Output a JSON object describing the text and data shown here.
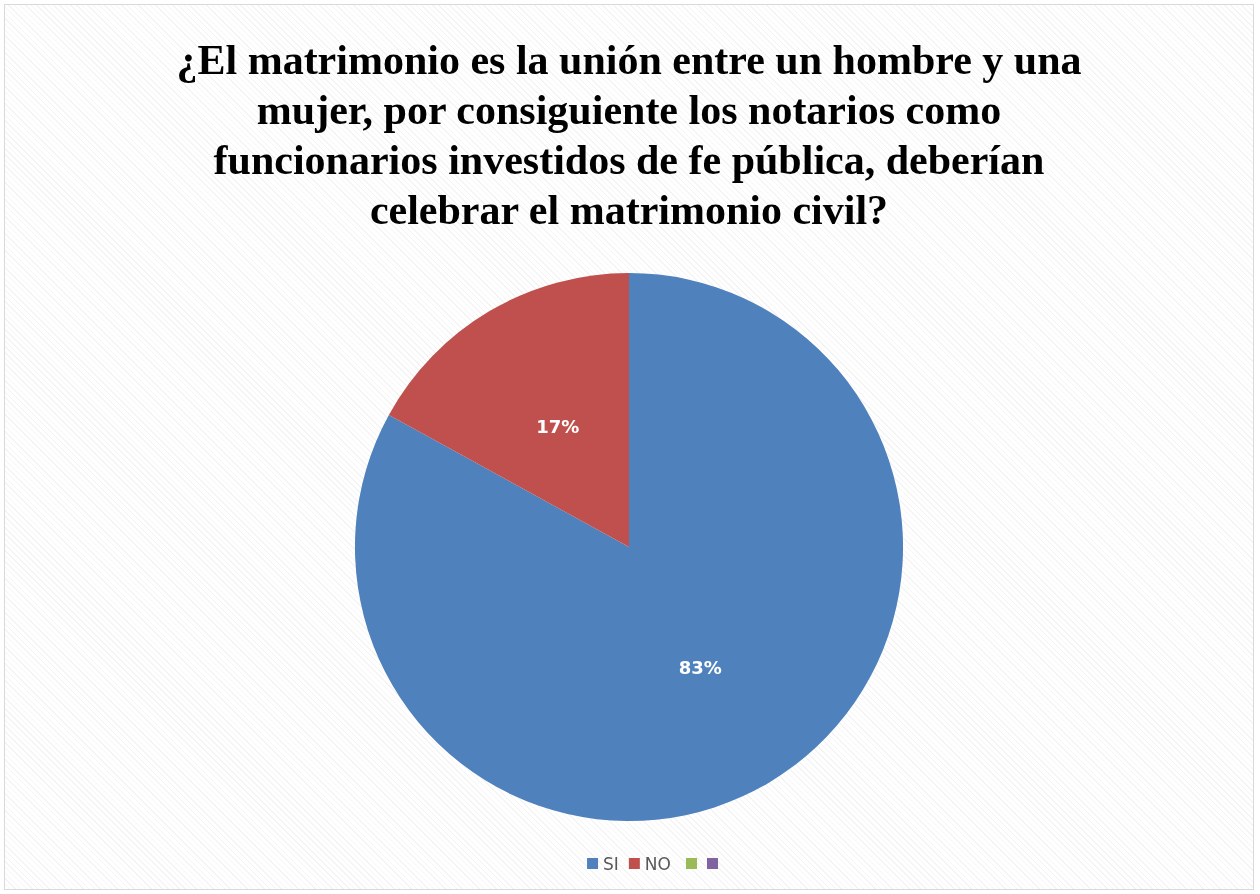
{
  "chart_data": {
    "type": "pie",
    "title": "¿El matrimonio es la unión entre un hombre y una mujer, por consiguiente los notarios como funcionarios investidos de fe pública, deberían celebrar el matrimonio civil?",
    "categories": [
      "SI",
      "NO",
      null,
      null
    ],
    "values": [
      83,
      17,
      0,
      0
    ],
    "colors": [
      "#4f81bd",
      "#c0504d",
      "#9bbb59",
      "#8064a2"
    ],
    "value_labels": [
      "83%",
      "17%",
      null,
      null
    ],
    "legend": "bottom"
  }
}
